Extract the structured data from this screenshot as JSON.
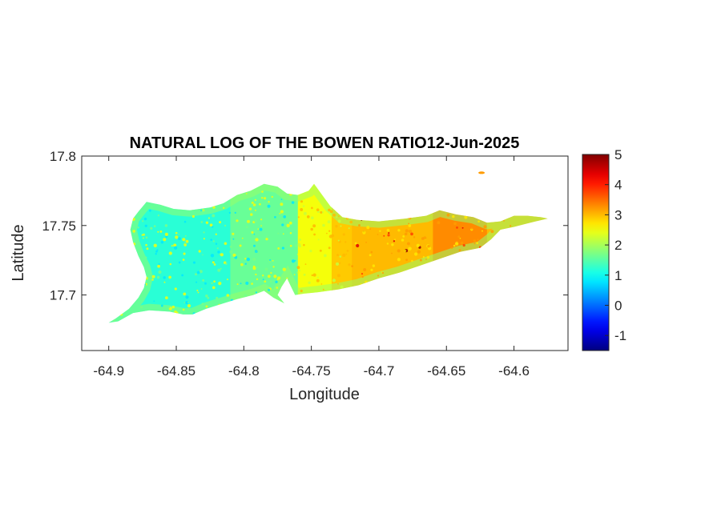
{
  "chart_data": {
    "type": "heatmap",
    "title": "NATURAL LOG OF THE BOWEN RATIO12-Jun-2025",
    "xlabel": "Longitude",
    "ylabel": "Latitude",
    "xlim": [
      -64.92,
      -64.56
    ],
    "ylim": [
      17.66,
      17.8
    ],
    "xticks": [
      -64.9,
      -64.85,
      -64.8,
      -64.75,
      -64.7,
      -64.65,
      -64.6
    ],
    "xtick_labels": [
      "-64.9",
      "-64.85",
      "-64.8",
      "-64.75",
      "-64.7",
      "-64.65",
      "-64.6"
    ],
    "yticks": [
      17.7,
      17.75,
      17.8
    ],
    "ytick_labels": [
      "17.7",
      "17.75",
      "17.8"
    ],
    "grid": false,
    "colormap": "jet",
    "colorbar": {
      "location": "right",
      "range": [
        -1.5,
        5
      ],
      "ticks": [
        -1,
        0,
        1,
        2,
        3,
        4,
        5
      ],
      "tick_labels": [
        "-1",
        "0",
        "1",
        "2",
        "3",
        "4",
        "5"
      ]
    },
    "region": {
      "outline_lonlat": [
        [
          -64.9,
          17.68
        ],
        [
          -64.895,
          17.683
        ],
        [
          -64.885,
          17.69
        ],
        [
          -64.878,
          17.698
        ],
        [
          -64.874,
          17.705
        ],
        [
          -64.872,
          17.713
        ],
        [
          -64.874,
          17.72
        ],
        [
          -64.878,
          17.728
        ],
        [
          -64.882,
          17.738
        ],
        [
          -64.884,
          17.747
        ],
        [
          -64.882,
          17.755
        ],
        [
          -64.878,
          17.76
        ],
        [
          -64.872,
          17.767
        ],
        [
          -64.862,
          17.765
        ],
        [
          -64.852,
          17.762
        ],
        [
          -64.84,
          17.761
        ],
        [
          -64.825,
          17.763
        ],
        [
          -64.815,
          17.766
        ],
        [
          -64.805,
          17.772
        ],
        [
          -64.795,
          17.775
        ],
        [
          -64.785,
          17.78
        ],
        [
          -64.775,
          17.778
        ],
        [
          -64.768,
          17.773
        ],
        [
          -64.76,
          17.772
        ],
        [
          -64.752,
          17.775
        ],
        [
          -64.748,
          17.78
        ],
        [
          -64.742,
          17.772
        ],
        [
          -64.736,
          17.764
        ],
        [
          -64.727,
          17.756
        ],
        [
          -64.716,
          17.754
        ],
        [
          -64.7,
          17.753
        ],
        [
          -64.68,
          17.755
        ],
        [
          -64.665,
          17.757
        ],
        [
          -64.655,
          17.761
        ],
        [
          -64.643,
          17.758
        ],
        [
          -64.63,
          17.756
        ],
        [
          -64.62,
          17.752
        ],
        [
          -64.61,
          17.753
        ],
        [
          -64.6,
          17.757
        ],
        [
          -64.59,
          17.757
        ],
        [
          -64.58,
          17.756
        ],
        [
          -64.575,
          17.755
        ],
        [
          -64.584,
          17.753
        ],
        [
          -64.592,
          17.751
        ],
        [
          -64.6,
          17.749
        ],
        [
          -64.61,
          17.747
        ],
        [
          -64.617,
          17.74
        ],
        [
          -64.625,
          17.734
        ],
        [
          -64.64,
          17.731
        ],
        [
          -64.655,
          17.726
        ],
        [
          -64.67,
          17.721
        ],
        [
          -64.685,
          17.716
        ],
        [
          -64.7,
          17.712
        ],
        [
          -64.715,
          17.707
        ],
        [
          -64.73,
          17.704
        ],
        [
          -64.745,
          17.702
        ],
        [
          -64.755,
          17.701
        ],
        [
          -64.762,
          17.7
        ],
        [
          -64.765,
          17.706
        ],
        [
          -64.768,
          17.712
        ],
        [
          -64.772,
          17.706
        ],
        [
          -64.775,
          17.7
        ],
        [
          -64.77,
          17.694
        ],
        [
          -64.778,
          17.698
        ],
        [
          -64.785,
          17.703
        ],
        [
          -64.793,
          17.7
        ],
        [
          -64.805,
          17.697
        ],
        [
          -64.815,
          17.694
        ],
        [
          -64.828,
          17.69
        ],
        [
          -64.838,
          17.686
        ],
        [
          -64.845,
          17.686
        ],
        [
          -64.855,
          17.688
        ],
        [
          -64.87,
          17.689
        ],
        [
          -64.882,
          17.687
        ],
        [
          -64.893,
          17.681
        ],
        [
          -64.9,
          17.68
        ]
      ],
      "islet_lonlat": [
        -64.624,
        17.788
      ],
      "value_zones": [
        {
          "lon_max": -64.81,
          "value": 1.2
        },
        {
          "lon_max": -64.76,
          "value": 1.6
        },
        {
          "lon_max": -64.735,
          "value": 2.5
        },
        {
          "lon_max": -64.72,
          "value": 2.9
        },
        {
          "lon_max": -64.66,
          "value": 3.0
        },
        {
          "lon_max": -64.62,
          "value": 3.3
        },
        {
          "lon_max": -64.56,
          "value": 3.0
        }
      ],
      "west_edge_value": 1.9,
      "speckle_values": [
        2.5,
        1.7,
        0.8,
        3.8,
        4.4,
        3.0,
        2.2,
        4.9
      ]
    }
  }
}
